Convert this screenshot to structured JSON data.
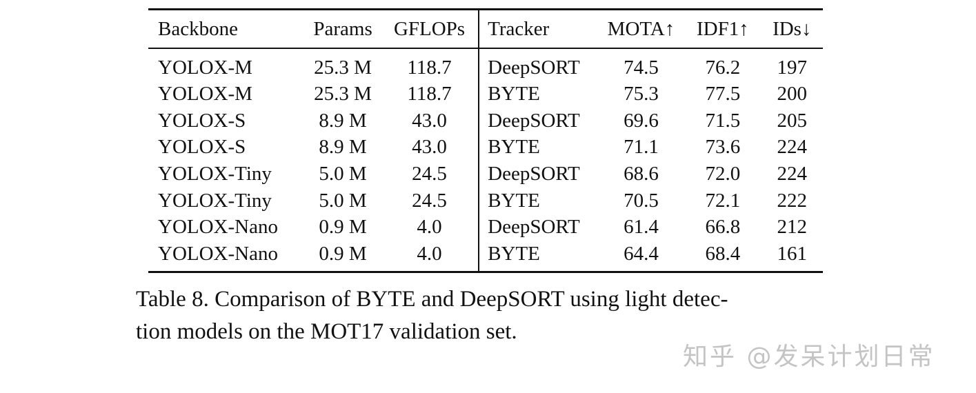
{
  "table": {
    "headers": [
      "Backbone",
      "Params",
      "GFLOPs",
      "Tracker",
      "MOTA↑",
      "IDF1↑",
      "IDs↓"
    ],
    "rows": [
      [
        "YOLOX-M",
        "25.3 M",
        "118.7",
        "DeepSORT",
        "74.5",
        "76.2",
        "197"
      ],
      [
        "YOLOX-M",
        "25.3 M",
        "118.7",
        "BYTE",
        "75.3",
        "77.5",
        "200"
      ],
      [
        "YOLOX-S",
        "8.9 M",
        "43.0",
        "DeepSORT",
        "69.6",
        "71.5",
        "205"
      ],
      [
        "YOLOX-S",
        "8.9 M",
        "43.0",
        "BYTE",
        "71.1",
        "73.6",
        "224"
      ],
      [
        "YOLOX-Tiny",
        "5.0 M",
        "24.5",
        "DeepSORT",
        "68.6",
        "72.0",
        "224"
      ],
      [
        "YOLOX-Tiny",
        "5.0 M",
        "24.5",
        "BYTE",
        "70.5",
        "72.1",
        "222"
      ],
      [
        "YOLOX-Nano",
        "0.9 M",
        "4.0",
        "DeepSORT",
        "61.4",
        "66.8",
        "212"
      ],
      [
        "YOLOX-Nano",
        "0.9 M",
        "4.0",
        "BYTE",
        "64.4",
        "68.4",
        "161"
      ]
    ]
  },
  "caption": {
    "line1": "Table 8. Comparison of BYTE and DeepSORT using light detec-",
    "line2": "tion models on the MOT17 validation set."
  },
  "watermark": "知乎 @发呆计划日常"
}
